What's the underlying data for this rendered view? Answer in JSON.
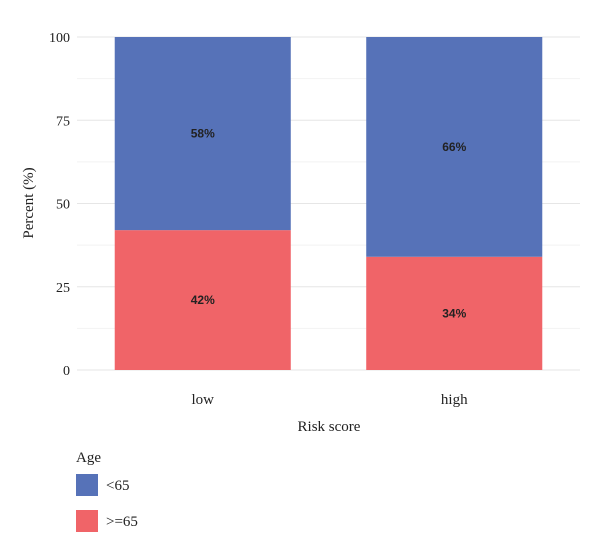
{
  "chart_data": {
    "type": "bar",
    "stacked": true,
    "title": "",
    "xlabel": "Risk score",
    "ylabel": "Percent (%)",
    "categories": [
      "low",
      "high"
    ],
    "ylim": [
      0,
      100
    ],
    "yticks": [
      0,
      25,
      50,
      75,
      100
    ],
    "grid": true,
    "legend_position": "bottom-left",
    "legend_title": "Age",
    "series": [
      {
        "name": ">=65",
        "values": [
          42,
          34
        ],
        "labels": [
          "42%",
          "34%"
        ],
        "color": "#f06468"
      },
      {
        "name": "<65",
        "values": [
          58,
          66
        ],
        "labels": [
          "58%",
          "66%"
        ],
        "color": "#5672b8"
      }
    ],
    "legend_items": [
      {
        "name": "<65",
        "color": "#5672b8"
      },
      {
        "name": ">=65",
        "color": "#f06468"
      }
    ]
  }
}
